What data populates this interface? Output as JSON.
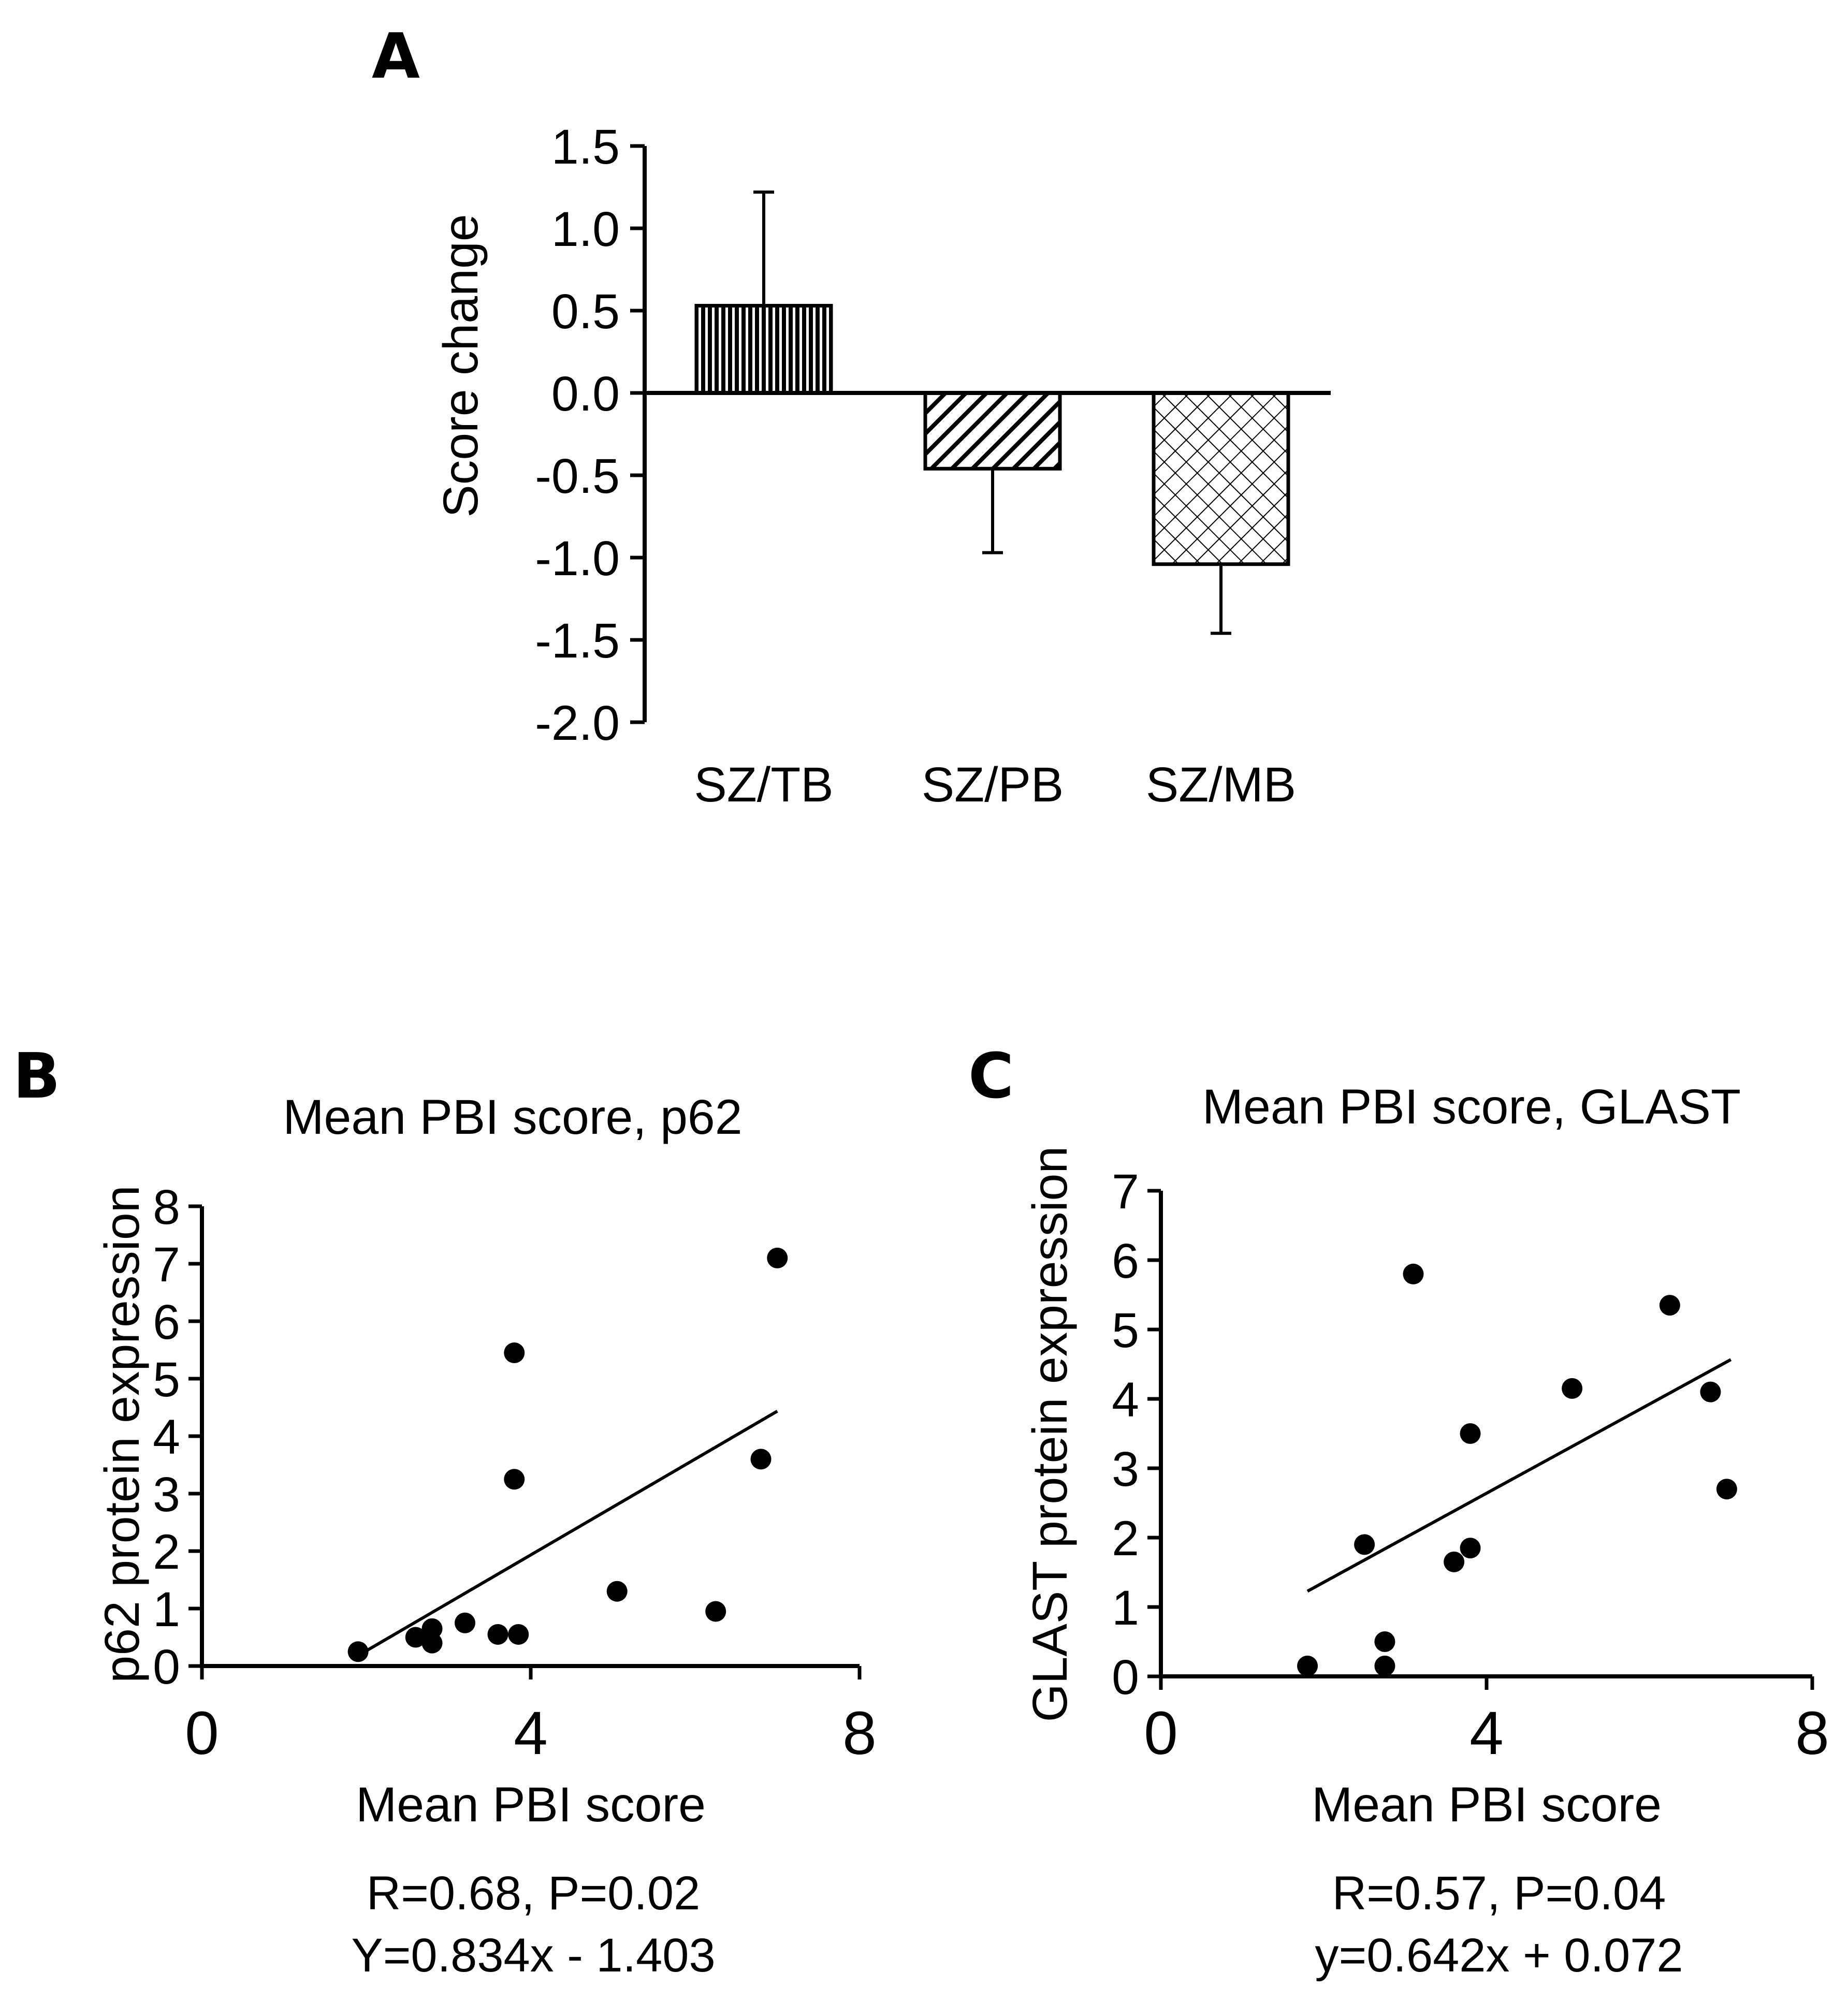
{
  "chart_data": [
    {
      "panel": "A",
      "type": "bar",
      "title": "",
      "ylabel": "Score change",
      "xlabel": "",
      "categories": [
        "SZ/TB",
        "SZ/PB",
        "SZ/MB"
      ],
      "values": [
        0.53,
        -0.46,
        -1.04
      ],
      "error_up": [
        0.69,
        0,
        0
      ],
      "error_down": [
        0,
        0.51,
        0.42
      ],
      "patterns": [
        "vertical-lines",
        "diagonal-lines",
        "crosshatch"
      ],
      "ylim": [
        -2.0,
        1.5
      ],
      "yticks": [
        "1.5",
        "1.0",
        "0.5",
        "0.0",
        "-0.5",
        "-1.0",
        "-1.5",
        "-2.0"
      ],
      "ytick_values": [
        1.5,
        1.0,
        0.5,
        0.0,
        -0.5,
        -1.0,
        -1.5,
        -2.0
      ]
    },
    {
      "panel": "B",
      "type": "scatter",
      "title": "Mean PBI score, p62",
      "xlabel": "Mean PBI score",
      "ylabel": "p62 protein expression",
      "xlim": [
        0,
        8
      ],
      "ylim": [
        0,
        8
      ],
      "xticks": [
        "0",
        "4",
        "8"
      ],
      "xtick_values": [
        0,
        4,
        8
      ],
      "yticks": [
        "8",
        "7",
        "6",
        "5",
        "4",
        "3",
        "2",
        "1",
        "0"
      ],
      "ytick_values": [
        8,
        7,
        6,
        5,
        4,
        3,
        2,
        1,
        0
      ],
      "points": [
        {
          "x": 1.9,
          "y": 0.25
        },
        {
          "x": 2.6,
          "y": 0.5
        },
        {
          "x": 2.8,
          "y": 0.65
        },
        {
          "x": 2.8,
          "y": 0.4
        },
        {
          "x": 3.2,
          "y": 0.75
        },
        {
          "x": 3.6,
          "y": 0.55
        },
        {
          "x": 3.85,
          "y": 0.55
        },
        {
          "x": 3.8,
          "y": 5.45
        },
        {
          "x": 3.8,
          "y": 3.25
        },
        {
          "x": 5.05,
          "y": 1.3
        },
        {
          "x": 6.25,
          "y": 0.95
        },
        {
          "x": 6.8,
          "y": 3.6
        },
        {
          "x": 7.0,
          "y": 7.1
        }
      ],
      "fit": {
        "x0": 1.95,
        "x1": 7.0,
        "slope": 0.834,
        "intercept": -1.403
      },
      "annotation_r": "R=0.68, P=0.02",
      "annotation_eq": "Y=0.834x - 1.403"
    },
    {
      "panel": "C",
      "type": "scatter",
      "title": "Mean PBI score, GLAST",
      "xlabel": "Mean PBI score",
      "ylabel": "GLAST protein expression",
      "xlim": [
        0,
        8
      ],
      "ylim": [
        0,
        7
      ],
      "xticks": [
        "0",
        "4",
        "8"
      ],
      "xtick_values": [
        0,
        4,
        8
      ],
      "yticks": [
        "7",
        "6",
        "5",
        "4",
        "3",
        "2",
        "1",
        "0"
      ],
      "ytick_values": [
        7,
        6,
        5,
        4,
        3,
        2,
        1,
        0
      ],
      "points": [
        {
          "x": 1.8,
          "y": 0.15
        },
        {
          "x": 2.5,
          "y": 1.9
        },
        {
          "x": 2.75,
          "y": 0.5
        },
        {
          "x": 2.75,
          "y": 0.15
        },
        {
          "x": 3.1,
          "y": 5.8
        },
        {
          "x": 3.6,
          "y": 1.65
        },
        {
          "x": 3.8,
          "y": 3.5
        },
        {
          "x": 3.8,
          "y": 1.85
        },
        {
          "x": 5.05,
          "y": 4.15
        },
        {
          "x": 6.25,
          "y": 5.35
        },
        {
          "x": 6.75,
          "y": 4.1
        },
        {
          "x": 6.95,
          "y": 2.7
        }
      ],
      "fit": {
        "x0": 1.8,
        "x1": 7.0,
        "slope": 0.642,
        "intercept": 0.072
      },
      "annotation_r": "R=0.57, P=0.04",
      "annotation_eq": "y=0.642x + 0.072"
    }
  ]
}
